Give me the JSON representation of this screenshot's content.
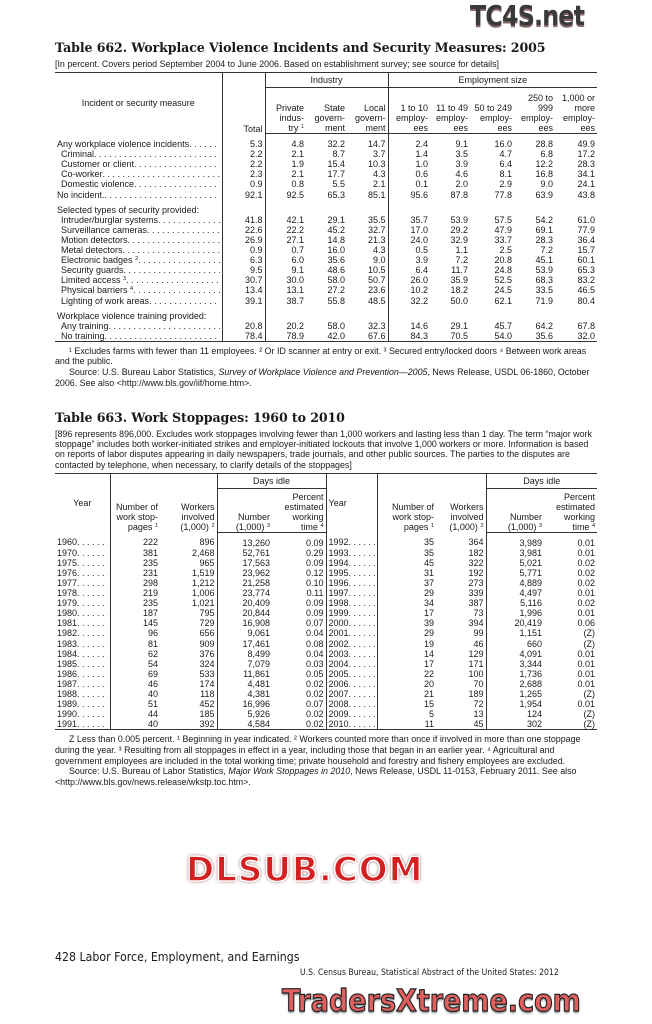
{
  "table662": {
    "title": "Table 662. Workplace Violence Incidents and Security Measures: 2005",
    "headnote": "[In percent. Covers period September 2004 to June 2006. Based on establishment survey; see source for details]",
    "stub_header": "Incident or security measure",
    "total_header": "Total",
    "group_industry": "Industry",
    "group_employment": "Employment size",
    "columns": [
      {
        "label": "Private indus- try",
        "sup": "1"
      },
      {
        "label": "State govern- ment",
        "sup": ""
      },
      {
        "label": "Local govern- ment",
        "sup": ""
      },
      {
        "label": "1 to 10 employ- ees",
        "sup": ""
      },
      {
        "label": "11 to 49 employ- ees",
        "sup": ""
      },
      {
        "label": "50 to 249 employ- ees",
        "sup": ""
      },
      {
        "label": "250 to 999 employ- ees",
        "sup": ""
      },
      {
        "label": "1,000 or more employ- ees",
        "sup": ""
      }
    ],
    "rows": [
      {
        "label": "Any workplace violence incidents",
        "indent": false,
        "values": [
          "5.3",
          "4.8",
          "32.2",
          "14.7",
          "2.4",
          "9.1",
          "16.0",
          "28.8",
          "49.9"
        ]
      },
      {
        "label": "Criminal",
        "indent": true,
        "values": [
          "2.2",
          "2.1",
          "8.7",
          "3.7",
          "1.4",
          "3.5",
          "4.7",
          "6.8",
          "17.2"
        ]
      },
      {
        "label": "Customer or client",
        "indent": true,
        "values": [
          "2.2",
          "1.9",
          "15.4",
          "10.3",
          "1.0",
          "3.9",
          "6.4",
          "12.2",
          "28.3"
        ]
      },
      {
        "label": "Co-worker",
        "indent": true,
        "values": [
          "2.3",
          "2.1",
          "17.7",
          "4.3",
          "0.6",
          "4.6",
          "8.1",
          "16.8",
          "34.1"
        ]
      },
      {
        "label": "Domestic violence",
        "indent": true,
        "values": [
          "0.9",
          "0.8",
          "5.5",
          "2.1",
          "0.1",
          "2.0",
          "2.9",
          "9.0",
          "24.1"
        ]
      },
      {
        "label": "No incident.",
        "indent": false,
        "values": [
          "92.1",
          "92.5",
          "65.3",
          "85.1",
          "95.6",
          "87.8",
          "77.8",
          "63.9",
          "43.8"
        ]
      },
      {
        "label": "Selected types of security provided:",
        "section": true
      },
      {
        "label": "Intruder/burglar systems",
        "indent": true,
        "values": [
          "41.8",
          "42.1",
          "29.1",
          "35.5",
          "35.7",
          "53.9",
          "57.5",
          "54.2",
          "61.0"
        ]
      },
      {
        "label": "Surveillance cameras",
        "indent": true,
        "values": [
          "22.6",
          "22.2",
          "45.2",
          "32.7",
          "17.0",
          "29.2",
          "47.9",
          "69.1",
          "77.9"
        ]
      },
      {
        "label": "Motion detectors",
        "indent": true,
        "values": [
          "26.9",
          "27.1",
          "14.8",
          "21.3",
          "24.0",
          "32.9",
          "33.7",
          "28.3",
          "36.4"
        ]
      },
      {
        "label": "Metal detectors",
        "indent": true,
        "values": [
          "0.9",
          "0.7",
          "16.0",
          "4.3",
          "0.5",
          "1.1",
          "2.5",
          "7.2",
          "15.7"
        ]
      },
      {
        "label": "Electronic badges",
        "sup": "2",
        "indent": true,
        "values": [
          "6.3",
          "6.0",
          "35.6",
          "9.0",
          "3.9",
          "7.2",
          "20.8",
          "45.1",
          "60.1"
        ]
      },
      {
        "label": "Security guards",
        "indent": true,
        "values": [
          "9.5",
          "9.1",
          "48.6",
          "10.5",
          "6.4",
          "11.7",
          "24.8",
          "53.9",
          "65.3"
        ]
      },
      {
        "label": "Limited access",
        "sup": "3",
        "indent": true,
        "values": [
          "30.7",
          "30.0",
          "58.0",
          "50.7",
          "26.0",
          "35.9",
          "52.5",
          "68.3",
          "83.2"
        ]
      },
      {
        "label": "Physical barriers",
        "sup": "4",
        "indent": true,
        "values": [
          "13.4",
          "13.1",
          "27.2",
          "23.6",
          "10.2",
          "18.2",
          "24.5",
          "33.5",
          "46.5"
        ]
      },
      {
        "label": "Lighting of work areas",
        "indent": true,
        "values": [
          "39.1",
          "38.7",
          "55.8",
          "48.5",
          "32.2",
          "50.0",
          "62.1",
          "71.9",
          "80.4"
        ]
      },
      {
        "label": "Workplace violence training provided:",
        "section": true
      },
      {
        "label": "Any training",
        "indent": true,
        "values": [
          "20.8",
          "20.2",
          "58.0",
          "32.3",
          "14.6",
          "29.1",
          "45.7",
          "64.2",
          "67.8"
        ]
      },
      {
        "label": "No training",
        "indent": true,
        "values": [
          "78.4",
          "78.9",
          "42.0",
          "67.6",
          "84.3",
          "70.5",
          "54.0",
          "35.6",
          "32.0"
        ]
      }
    ],
    "footnotes": "¹ Excludes farms with fewer than 11 employees. ² Or ID scanner at entry or exit. ³ Secured entry/locked doors ⁴ Between work areas and the public.",
    "source_prefix": "Source: U.S. Bureau Labor Statistics, ",
    "source_title": "Survey of Workplace Violence and Prevention—2005",
    "source_suffix": ", News Release, USDL 06-1860, October 2006. See also <http://www.bls.gov/iif/home.htm>."
  },
  "table663": {
    "title": "Table 663. Work Stoppages: 1960 to 2010",
    "headnote": "[896 represents 896,000. Excludes work stoppages involving fewer than 1,000 workers and lasting less than 1 day. The term “major work stoppage” includes both worker-initiated strikes  and employer-initiated lockouts that involve 1,000 workers or more. Information is based on reports of labor disputes appearing in daily newspapers, trade journals, and other public sources. The parties to the disputes are contacted by telephone, when necessary, to clarify details of the stoppages]",
    "headers": {
      "year": "Year",
      "stoppages": "Number of work stop- pages",
      "stoppages_sup": "1",
      "workers": "Workers involved (1,000)",
      "workers_sup": "2",
      "days_idle": "Days idle",
      "number": "Number (1,000)",
      "number_sup": "3",
      "percent": "Percent estimated working time",
      "percent_sup": "4"
    },
    "rows_left": [
      [
        "1960",
        "222",
        "896",
        "13,260",
        "0.09"
      ],
      [
        "1970",
        "381",
        "2,468",
        "52,761",
        "0.29"
      ],
      [
        "1975",
        "235",
        "965",
        "17,563",
        "0.09"
      ],
      [
        "1976",
        "231",
        "1,519",
        "23,962",
        "0.12"
      ],
      [
        "1977",
        "298",
        "1,212",
        "21,258",
        "0.10"
      ],
      [
        "1978",
        "219",
        "1,006",
        "23,774",
        "0.11"
      ],
      [
        "1979",
        "235",
        "1,021",
        "20,409",
        "0.09"
      ],
      [
        "1980",
        "187",
        "795",
        "20,844",
        "0.09"
      ],
      [
        "1981",
        "145",
        "729",
        "16,908",
        "0.07"
      ],
      [
        "1982",
        "96",
        "656",
        "9,061",
        "0.04"
      ],
      [
        "1983",
        "81",
        "909",
        "17,461",
        "0.08"
      ],
      [
        "1984",
        "62",
        "376",
        "8,499",
        "0.04"
      ],
      [
        "1985",
        "54",
        "324",
        "7,079",
        "0.03"
      ],
      [
        "1986",
        "69",
        "533",
        "11,861",
        "0.05"
      ],
      [
        "1987",
        "46",
        "174",
        "4,481",
        "0.02"
      ],
      [
        "1988",
        "40",
        "118",
        "4,381",
        "0.02"
      ],
      [
        "1989",
        "51",
        "452",
        "16,996",
        "0.07"
      ],
      [
        "1990",
        "44",
        "185",
        "5,926",
        "0.02"
      ],
      [
        "1991",
        "40",
        "392",
        "4,584",
        "0.02"
      ]
    ],
    "rows_right": [
      [
        "1992",
        "35",
        "364",
        "3,989",
        "0.01"
      ],
      [
        "1993",
        "35",
        "182",
        "3,981",
        "0.01"
      ],
      [
        "1994",
        "45",
        "322",
        "5,021",
        "0.02"
      ],
      [
        "1995",
        "31",
        "192",
        "5,771",
        "0.02"
      ],
      [
        "1996",
        "37",
        "273",
        "4,889",
        "0.02"
      ],
      [
        "1997",
        "29",
        "339",
        "4,497",
        "0.01"
      ],
      [
        "1998",
        "34",
        "387",
        "5,116",
        "0.02"
      ],
      [
        "1999",
        "17",
        "73",
        "1,996",
        "0.01"
      ],
      [
        "2000",
        "39",
        "394",
        "20,419",
        "0.06"
      ],
      [
        "2001",
        "29",
        "99",
        "1,151",
        "(Z)"
      ],
      [
        "2002",
        "19",
        "46",
        "660",
        "(Z)"
      ],
      [
        "2003",
        "14",
        "129",
        "4,091",
        "0.01"
      ],
      [
        "2004",
        "17",
        "171",
        "3,344",
        "0.01"
      ],
      [
        "2005",
        "22",
        "100",
        "1,736",
        "0.01"
      ],
      [
        "2006",
        "20",
        "70",
        "2,688",
        "0.01"
      ],
      [
        "2007",
        "21",
        "189",
        "1,265",
        "(Z)"
      ],
      [
        "2008",
        "15",
        "72",
        "1,954",
        "0.01"
      ],
      [
        "2009",
        "5",
        "13",
        "124",
        "(Z)"
      ],
      [
        "2010",
        "11",
        "45",
        "302",
        "(Z)"
      ]
    ],
    "footnotes": "Z Less than 0.005 percent. ¹ Beginning in year indicated. ² Workers counted more than once if involved in more than one stoppage during the year. ³ Resulting from all stoppages in effect in a year, including those that began in an earlier year. ⁴ Agricultural and government employees are included in the total working time; private household and forestry and fishery employees are excluded.",
    "source_prefix": "Source: U.S. Bureau of Labor Statistics, ",
    "source_title": "Major Work Stoppages in 2010",
    "source_suffix": ", News Release, USDL 11-0153, February 2011. See also <http://www.bls.gov/news.release/wkstp.toc.htm>."
  },
  "page_footer": {
    "left": "428  Labor Force, Employment, and Earnings",
    "right": "U.S. Census Bureau, Statistical Abstract of the United States: 2012"
  },
  "watermarks": [
    "TC4S.net",
    "DLSUB.COM",
    "TradersXtreme.com"
  ]
}
